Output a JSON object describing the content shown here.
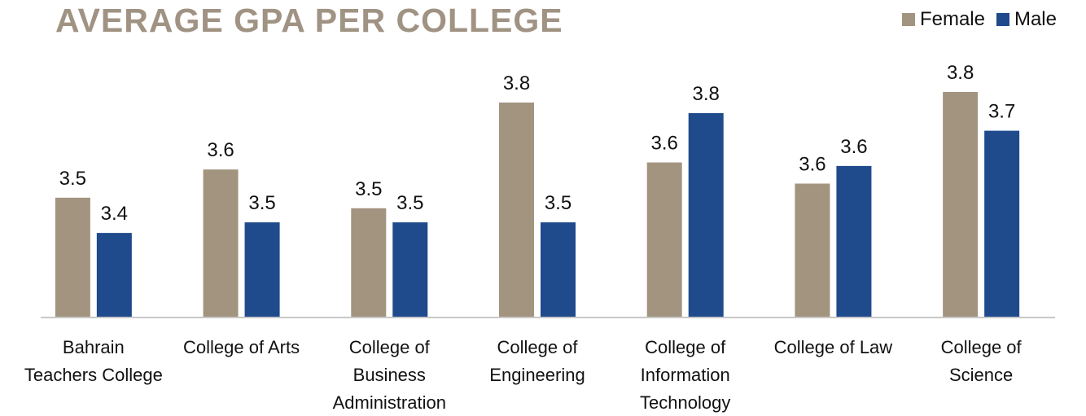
{
  "chart_data": {
    "type": "bar",
    "title": "AVERAGE GPA PER COLLEGE",
    "categories": [
      "Bahrain Teachers College",
      "College of Arts",
      "College of Business Administration",
      "College of Engineering",
      "College of Information Technology",
      "College of Law",
      "College of Science"
    ],
    "series": [
      {
        "name": "Female",
        "color": "#a39480",
        "values": [
          3.54,
          3.62,
          3.51,
          3.81,
          3.64,
          3.58,
          3.84
        ],
        "value_labels": [
          "3.5",
          "3.6",
          "3.5",
          "3.8",
          "3.6",
          "3.6",
          "3.8"
        ]
      },
      {
        "name": "Male",
        "color": "#1f4a8c",
        "values": [
          3.44,
          3.47,
          3.47,
          3.47,
          3.78,
          3.63,
          3.73
        ],
        "value_labels": [
          "3.4",
          "3.5",
          "3.5",
          "3.5",
          "3.8",
          "3.6",
          "3.7"
        ]
      }
    ],
    "ylim": [
      3.2,
      3.9
    ],
    "legend": "top-right"
  }
}
